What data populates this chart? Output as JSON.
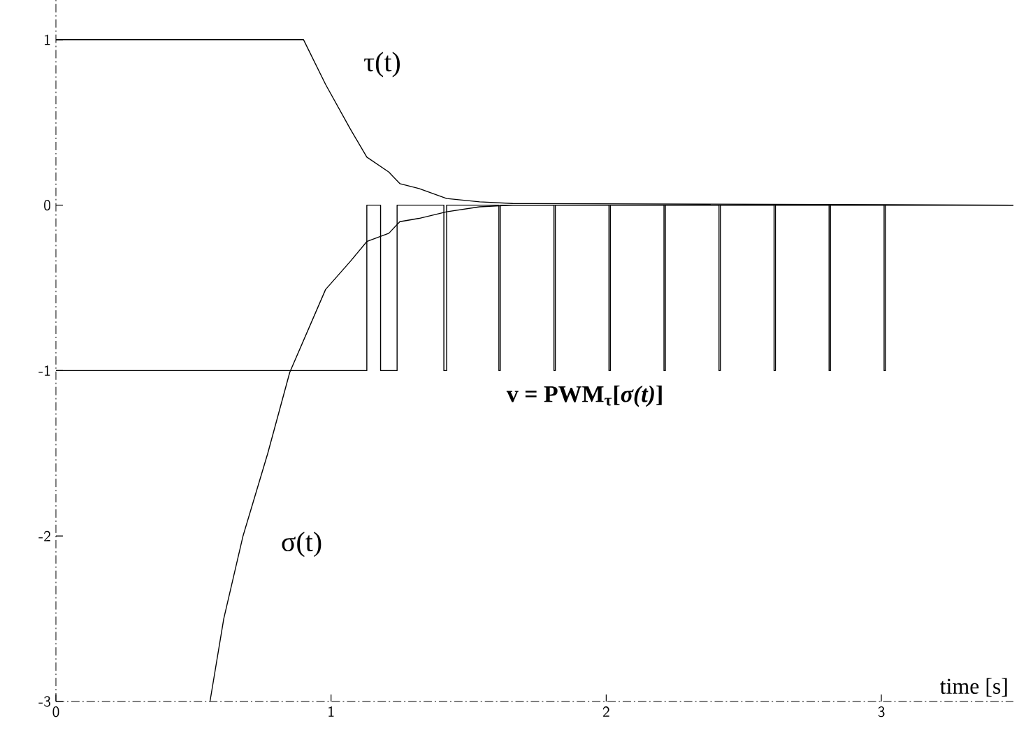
{
  "chart_data": {
    "type": "line",
    "xlabel": "time [s]",
    "xlim": [
      0,
      3.48
    ],
    "ylim": [
      -3,
      1.24
    ],
    "xticks": [
      0,
      1,
      2,
      3
    ],
    "yticks": [
      -3,
      -2,
      -1,
      0,
      1
    ],
    "grid": false,
    "legend": false,
    "marker": "none",
    "line_style": "solid",
    "series": [
      {
        "name": "τ(t)",
        "color": "#000000",
        "x": [
          0,
          0.9,
          0.98,
          1.07,
          1.13,
          1.21,
          1.25,
          1.32,
          1.42,
          1.54,
          1.66,
          3.48
        ],
        "values": [
          1,
          1,
          0.73,
          0.46,
          0.29,
          0.2,
          0.13,
          0.1,
          0.04,
          0.02,
          0.01,
          0
        ]
      },
      {
        "name": "σ(t)",
        "color": "#000000",
        "x": [
          0.56,
          0.61,
          0.68,
          0.77,
          0.85,
          0.98,
          1.07,
          1.13,
          1.21,
          1.25,
          1.32,
          1.42,
          1.54,
          1.66,
          3.48
        ],
        "values": [
          -3,
          -2.5,
          -2,
          -1.5,
          -1.01,
          -0.51,
          -0.34,
          -0.22,
          -0.17,
          -0.1,
          -0.08,
          -0.04,
          -0.01,
          0,
          0
        ]
      },
      {
        "name": "v = PWM$_{τ}$[*σ(t)*]",
        "type": "step",
        "color": "#000000",
        "x": [
          0,
          1.13,
          1.18,
          1.24,
          1.41,
          1.42,
          1.61,
          1.615,
          1.81,
          1.815,
          2.01,
          2.015,
          2.21,
          2.215,
          2.41,
          2.415,
          2.61,
          2.615,
          2.81,
          2.815,
          3.01,
          3.015,
          3.48
        ],
        "values": [
          -1,
          0,
          -1,
          0,
          -1,
          0,
          -1,
          0,
          -1,
          0,
          -1,
          0,
          -1,
          0,
          -1,
          0,
          -1,
          0,
          -1,
          0,
          -1,
          0,
          0
        ]
      }
    ]
  }
}
